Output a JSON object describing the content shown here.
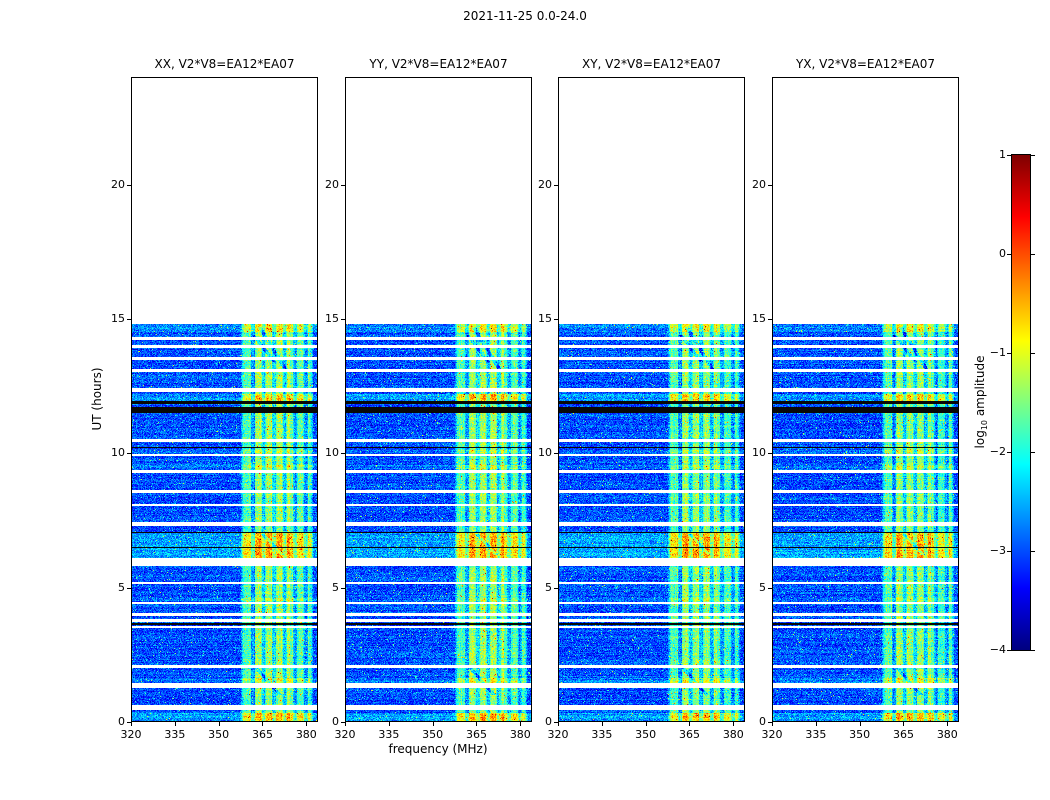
{
  "chart_data": {
    "type": "heatmap",
    "title": "2021-11-25 0.0-24.0",
    "xlabel": "frequency (MHz)",
    "ylabel": "UT (hours)",
    "colorbar_label": {
      "pre": "log",
      "sub": "10",
      "post": " amplitude"
    },
    "colormap": "jet",
    "xlim": [
      320,
      384
    ],
    "ylim": [
      0,
      24
    ],
    "clim": [
      -4,
      1
    ],
    "xticks": [
      "320",
      "335",
      "350",
      "365",
      "380"
    ],
    "xtick_values": [
      320,
      335,
      350,
      365,
      380
    ],
    "yticks": [
      "0",
      "5",
      "10",
      "15",
      "20"
    ],
    "ytick_values": [
      0,
      5,
      10,
      15,
      20
    ],
    "colorbar_ticks": [
      "1",
      "0",
      "−1",
      "−2",
      "−3",
      "−4"
    ],
    "colorbar_tick_values": [
      1,
      0,
      -1,
      -2,
      -3,
      -4
    ],
    "panels": [
      {
        "label": "XX, V2*V8=EA12*EA07",
        "seed": 11,
        "band_gain": 1.0
      },
      {
        "label": "YY, V2*V8=EA12*EA07",
        "seed": 23,
        "band_gain": 1.0
      },
      {
        "label": "XY, V2*V8=EA12*EA07",
        "seed": 37,
        "band_gain": 0.94
      },
      {
        "label": "YX, V2*V8=EA12*EA07",
        "seed": 51,
        "band_gain": 0.97
      }
    ],
    "data_time_extent_hours": [
      0,
      14.8
    ],
    "background_level_log10": -3.0,
    "noise_sigma": 0.38,
    "rfi_band": {
      "freq_range_mhz": [
        357.5,
        382.5
      ],
      "level_log10": -1.7,
      "bright_core_mhz": [
        362.5,
        374.5
      ],
      "bright_core_boost": 0.35,
      "dark_line_freqs_mhz": [
        361.8,
        365.4,
        369.0,
        372.6,
        376.2,
        379.8
      ]
    },
    "white_gap_intervals_hours": [
      [
        0.45,
        0.62
      ],
      [
        1.28,
        1.44
      ],
      [
        2.02,
        2.12
      ],
      [
        3.48,
        3.58
      ],
      [
        3.72,
        3.82
      ],
      [
        3.95,
        4.05
      ],
      [
        4.38,
        4.48
      ],
      [
        5.12,
        5.22
      ],
      [
        5.82,
        6.12
      ],
      [
        7.28,
        7.44
      ],
      [
        8.02,
        8.12
      ],
      [
        8.52,
        8.62
      ],
      [
        9.28,
        9.38
      ],
      [
        9.88,
        9.98
      ],
      [
        10.42,
        10.52
      ],
      [
        12.28,
        12.44
      ],
      [
        13.02,
        13.12
      ],
      [
        13.48,
        13.58
      ],
      [
        13.92,
        14.02
      ],
      [
        14.22,
        14.32
      ]
    ],
    "black_line_intervals_hours": [
      [
        11.5,
        11.72
      ],
      [
        11.82,
        11.96
      ],
      [
        3.62,
        3.67
      ],
      [
        6.48,
        6.53
      ],
      [
        7.02,
        7.07
      ],
      [
        10.18,
        10.22
      ]
    ],
    "bright_intervals_hours": [
      [
        0.0,
        0.32,
        0.85
      ],
      [
        1.44,
        1.62,
        0.5
      ],
      [
        4.5,
        4.62,
        0.3
      ],
      [
        6.12,
        7.02,
        0.95
      ],
      [
        9.4,
        9.55,
        0.35
      ],
      [
        10.0,
        10.12,
        0.3
      ],
      [
        11.96,
        12.2,
        0.8
      ],
      [
        14.5,
        14.8,
        0.6
      ]
    ],
    "diagonal_streaks": [
      {
        "t0": 14.7,
        "f0": 364,
        "t1": 13.1,
        "f1": 373
      },
      {
        "t0": 14.4,
        "f0": 362,
        "t1": 13.4,
        "f1": 369
      },
      {
        "t0": 2.0,
        "f0": 363,
        "t1": 1.0,
        "f1": 371
      },
      {
        "t0": 7.0,
        "f0": 365,
        "t1": 6.2,
        "f1": 372
      }
    ]
  },
  "colors": {
    "axis": "#000000",
    "background": "#ffffff"
  }
}
